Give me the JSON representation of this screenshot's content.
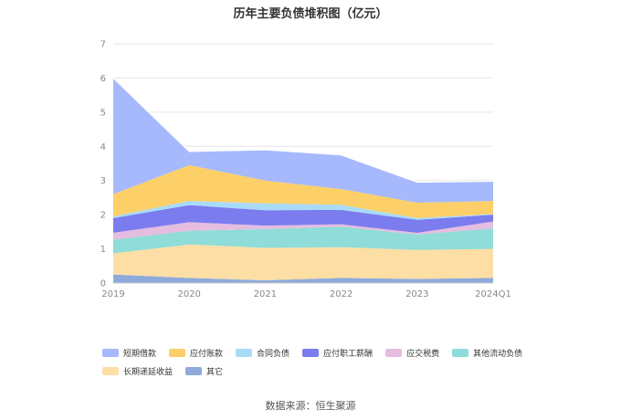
{
  "chart_data": {
    "type": "area",
    "stacked": true,
    "title": "历年主要负债堆积图（亿元）",
    "categories": [
      "2019",
      "2020",
      "2021",
      "2022",
      "2023",
      "2024Q1"
    ],
    "ylim": [
      0,
      7
    ],
    "yticks": [
      "0",
      "1",
      "2",
      "3",
      "4",
      "5",
      "6",
      "7"
    ],
    "grid": true,
    "legend_position": "bottom",
    "series": [
      {
        "name": "其它",
        "color": "#8eaadb",
        "values": [
          0.25,
          0.15,
          0.08,
          0.15,
          0.12,
          0.15
        ]
      },
      {
        "name": "长期递延收益",
        "color": "#fddea5",
        "values": [
          0.62,
          0.98,
          0.95,
          0.9,
          0.85,
          0.85
        ]
      },
      {
        "name": "其他流动负债",
        "color": "#8fdcd8",
        "values": [
          0.4,
          0.4,
          0.55,
          0.6,
          0.45,
          0.6
        ]
      },
      {
        "name": "应交税费",
        "color": "#e5bde0",
        "values": [
          0.2,
          0.25,
          0.1,
          0.07,
          0.05,
          0.2
        ]
      },
      {
        "name": "应付职工薪酬",
        "color": "#7b7cee",
        "values": [
          0.43,
          0.5,
          0.45,
          0.42,
          0.38,
          0.2
        ]
      },
      {
        "name": "合同负债",
        "color": "#a8dbf8",
        "values": [
          0.05,
          0.12,
          0.2,
          0.15,
          0.05,
          0.02
        ]
      },
      {
        "name": "应付账款",
        "color": "#fccf68",
        "values": [
          0.65,
          1.05,
          0.67,
          0.46,
          0.45,
          0.38
        ]
      },
      {
        "name": "短期借款",
        "color": "#a6b9fc",
        "values": [
          3.4,
          0.4,
          0.9,
          1.0,
          0.6,
          0.58
        ]
      }
    ],
    "legend_order": [
      "短期借款",
      "应付账款",
      "合同负债",
      "应付职工薪酬",
      "应交税费",
      "其他流动负债",
      "长期递延收益",
      "其它"
    ]
  },
  "source": "数据来源：恒生聚源"
}
